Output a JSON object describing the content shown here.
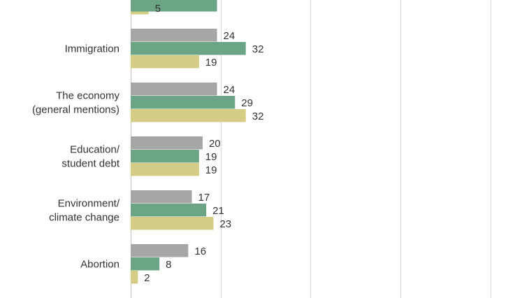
{
  "chart_data": {
    "type": "bar",
    "orientation": "horizontal",
    "categories": [
      [
        "Immigration"
      ],
      [
        "The economy",
        "(general mentions)"
      ],
      [
        "Education/",
        "student debt"
      ],
      [
        "Environment/",
        "climate change"
      ],
      [
        "Abortion"
      ]
    ],
    "series": [
      {
        "values": [
          24,
          24,
          20,
          17,
          16
        ],
        "color": "#a6a6a6"
      },
      {
        "values": [
          32,
          29,
          19,
          21,
          8
        ],
        "color": "#6ca586"
      },
      {
        "values": [
          19,
          32,
          19,
          23,
          2
        ],
        "color": "#d5cc86"
      }
    ],
    "partial_top": {
      "values": [
        null,
        null,
        5
      ]
    },
    "xlim": [
      0,
      100
    ],
    "grid": true
  }
}
